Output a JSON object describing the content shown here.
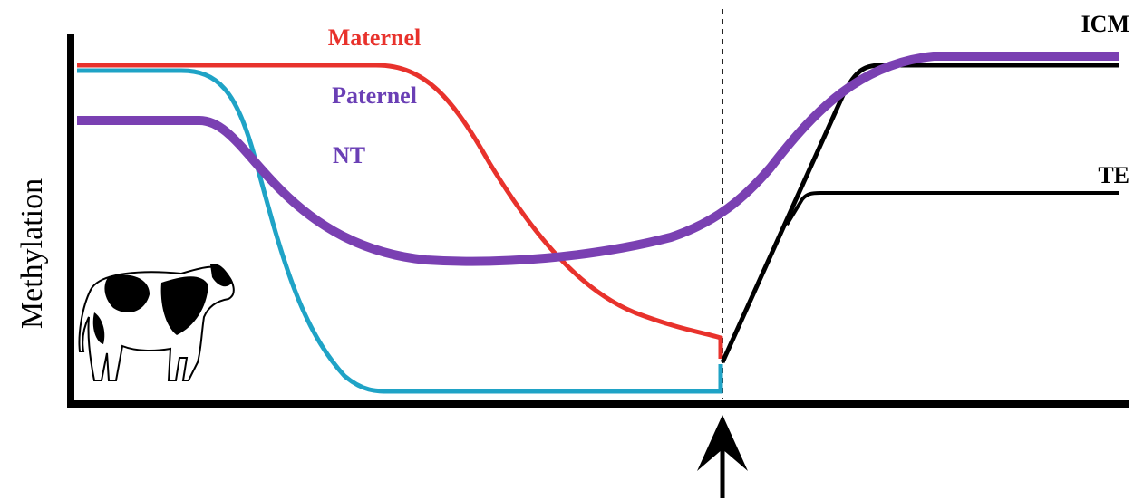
{
  "y_axis": {
    "label": "Methylation"
  },
  "curves": {
    "maternal": {
      "label": "Maternel"
    },
    "paternal": {
      "label": "Paternel"
    },
    "nt": {
      "label": "NT"
    },
    "icm": {
      "label": "ICM"
    },
    "te": {
      "label": "TE"
    }
  }
}
